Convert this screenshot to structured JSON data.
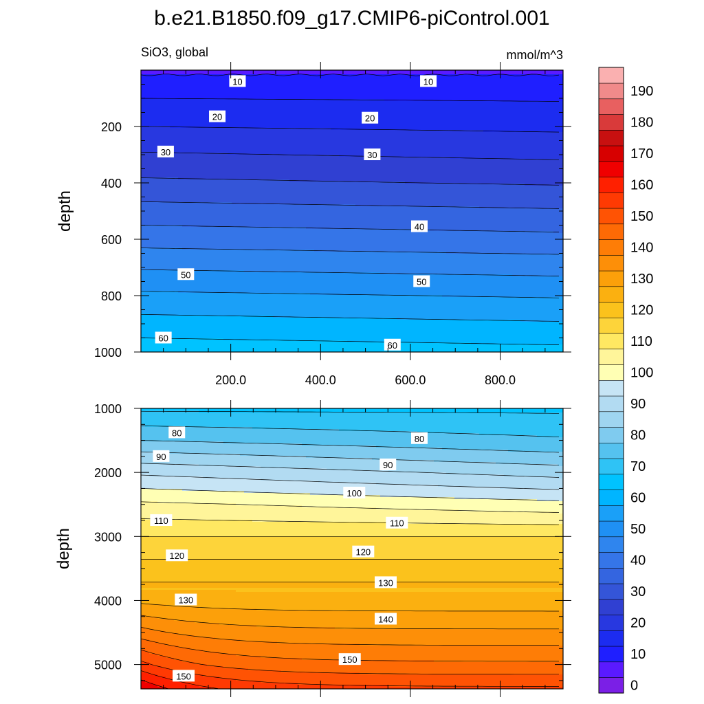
{
  "chart_data": {
    "type": "contour",
    "title": "b.e21.B1850.f09_g17.CMIP6-piControl.001",
    "variable_label": "SiO3, global",
    "units_label": "mmol/m^3",
    "colorbar": {
      "levels": [
        0,
        5,
        10,
        15,
        20,
        25,
        30,
        35,
        40,
        45,
        50,
        55,
        60,
        65,
        70,
        75,
        80,
        85,
        90,
        95,
        100,
        105,
        110,
        115,
        120,
        125,
        130,
        135,
        140,
        145,
        150,
        155,
        160,
        165,
        170,
        175,
        180,
        185,
        190,
        195
      ],
      "tick_labels": [
        "0",
        "10",
        "20",
        "30",
        "40",
        "50",
        "60",
        "70",
        "80",
        "90",
        "100",
        "110",
        "120",
        "130",
        "140",
        "150",
        "160",
        "170",
        "180",
        "190"
      ],
      "colors": [
        "#7b1fe6",
        "#5a1aff",
        "#1f1fff",
        "#1c2cf0",
        "#2838e0",
        "#3040d2",
        "#3455d8",
        "#3465e0",
        "#3575e8",
        "#2f85ee",
        "#1f90f4",
        "#1aa0f8",
        "#00b5ff",
        "#00c3ff",
        "#2fc3f5",
        "#55c2ef",
        "#7fcbef",
        "#9fd5f0",
        "#b2dbf2",
        "#c6e4f5",
        "#ffffb4",
        "#fff59a",
        "#ffe862",
        "#fdd43a",
        "#fbc21c",
        "#fbb010",
        "#fca00a",
        "#fd8f08",
        "#fe7d06",
        "#fe6a05",
        "#ff5304",
        "#ff3a03",
        "#ff2000",
        "#f00000",
        "#d70000",
        "#c81010",
        "#d93a3a",
        "#e86060",
        "#f08a8a",
        "#fab0b0"
      ]
    },
    "panels": [
      {
        "name": "upper",
        "ylabel": "depth",
        "ylim": [
          0,
          1000
        ],
        "xlim": [
          0,
          940
        ],
        "y_ticks": [
          200,
          400,
          600,
          800,
          1000
        ],
        "x_ticks": [
          200,
          400,
          600,
          800
        ],
        "x_tick_labels": [
          "200.0",
          "400.0",
          "600.0",
          "800.0"
        ],
        "contour_labels": [
          {
            "text": "10",
            "x": 215,
            "y": 40
          },
          {
            "text": "10",
            "x": 640,
            "y": 40
          },
          {
            "text": "20",
            "x": 170,
            "y": 165
          },
          {
            "text": "20",
            "x": 510,
            "y": 170
          },
          {
            "text": "30",
            "x": 55,
            "y": 290
          },
          {
            "text": "30",
            "x": 515,
            "y": 300
          },
          {
            "text": "40",
            "x": 620,
            "y": 555
          },
          {
            "text": "50",
            "x": 100,
            "y": 725
          },
          {
            "text": "50",
            "x": 625,
            "y": 750
          },
          {
            "text": "60",
            "x": 50,
            "y": 950
          },
          {
            "text": "60",
            "x": 560,
            "y": 975
          }
        ]
      },
      {
        "name": "lower",
        "ylabel": "depth",
        "ylim": [
          1000,
          5380
        ],
        "xlim": [
          0,
          940
        ],
        "y_ticks": [
          1000,
          2000,
          3000,
          4000,
          5000
        ],
        "contour_labels": [
          {
            "text": "80",
            "x": 80,
            "y": 1380
          },
          {
            "text": "80",
            "x": 620,
            "y": 1470
          },
          {
            "text": "90",
            "x": 45,
            "y": 1750
          },
          {
            "text": "90",
            "x": 550,
            "y": 1880
          },
          {
            "text": "100",
            "x": 475,
            "y": 2320
          },
          {
            "text": "110",
            "x": 45,
            "y": 2750
          },
          {
            "text": "110",
            "x": 570,
            "y": 2790
          },
          {
            "text": "120",
            "x": 80,
            "y": 3300
          },
          {
            "text": "120",
            "x": 495,
            "y": 3240
          },
          {
            "text": "130",
            "x": 100,
            "y": 3990
          },
          {
            "text": "130",
            "x": 545,
            "y": 3720
          },
          {
            "text": "140",
            "x": 545,
            "y": 4290
          },
          {
            "text": "150",
            "x": 465,
            "y": 4920
          },
          {
            "text": "150",
            "x": 95,
            "y": 5180
          }
        ]
      }
    ]
  }
}
